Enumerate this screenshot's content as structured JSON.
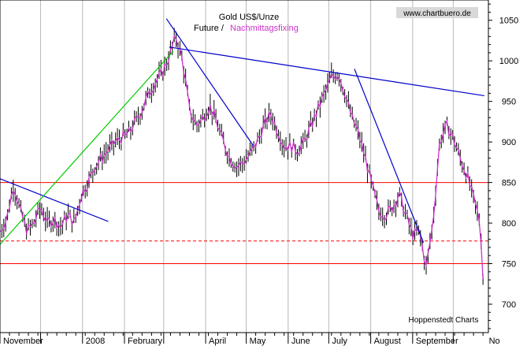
{
  "chart_data": {
    "type": "line",
    "title": "Gold US$/Unze",
    "subtitle_a": "Future /",
    "subtitle_b": "Nachmittagsfixing",
    "watermark": "www.chartbuero.de",
    "credit": "Hoppenstedt Charts",
    "ylim": [
      665,
      1075
    ],
    "yticks": [
      700,
      750,
      800,
      850,
      900,
      950,
      1000,
      1050
    ],
    "x_range_days": [
      0,
      361
    ],
    "months": [
      {
        "label": "November",
        "day": 0
      },
      {
        "label": "2008",
        "day": 61
      },
      {
        "label": "February",
        "day": 92
      },
      {
        "label": "April",
        "day": 152
      },
      {
        "label": "May",
        "day": 182
      },
      {
        "label": "June",
        "day": 213
      },
      {
        "label": "July",
        "day": 243
      },
      {
        "label": "August",
        "day": 274
      },
      {
        "label": "September",
        "day": 305
      },
      {
        "label": "No",
        "day": 359
      }
    ],
    "month_boundaries": [
      0,
      30,
      61,
      92,
      121,
      152,
      182,
      213,
      243,
      274,
      305,
      335,
      366
    ],
    "colors": {
      "future": "#000000",
      "fixing": "#cc33cc",
      "support": "#ff0000",
      "trend_down": "#0000cc",
      "trend_up": "#00cc00",
      "grid": "#b8b8b8"
    },
    "series": [
      {
        "name": "Nachmittagsfixing",
        "x": [
          0,
          5,
          10,
          15,
          20,
          25,
          30,
          35,
          40,
          45,
          50,
          55,
          60,
          65,
          70,
          75,
          80,
          85,
          90,
          95,
          100,
          105,
          110,
          115,
          120,
          125,
          130,
          135,
          140,
          145,
          150,
          155,
          160,
          165,
          170,
          175,
          180,
          185,
          190,
          195,
          200,
          205,
          210,
          215,
          220,
          225,
          230,
          235,
          240,
          245,
          250,
          255,
          260,
          265,
          270,
          275,
          280,
          285,
          290,
          295,
          300,
          305,
          310,
          315,
          320,
          325,
          330,
          335,
          340,
          345,
          350,
          355,
          358
        ],
        "values": [
          790,
          805,
          848,
          815,
          790,
          800,
          820,
          800,
          805,
          795,
          810,
          800,
          835,
          850,
          870,
          880,
          890,
          900,
          905,
          910,
          925,
          940,
          960,
          975,
          985,
          1005,
          1030,
          1000,
          940,
          920,
          930,
          945,
          925,
          900,
          880,
          870,
          875,
          885,
          900,
          920,
          935,
          915,
          895,
          895,
          890,
          900,
          920,
          940,
          960,
          980,
          985,
          960,
          930,
          910,
          880,
          845,
          815,
          810,
          820,
          835,
          810,
          785,
          790,
          745,
          800,
          900,
          920,
          905,
          880,
          860,
          830,
          800,
          700
        ]
      }
    ],
    "horizontal_lines": [
      {
        "y": 850,
        "style": "solid"
      },
      {
        "y": 778,
        "style": "dashed"
      },
      {
        "y": 750,
        "style": "solid"
      }
    ],
    "trendlines": [
      {
        "color": "trend_down",
        "from": [
          -5,
          858
        ],
        "to": [
          80,
          802
        ]
      },
      {
        "color": "trend_up",
        "from": [
          -2,
          770
        ],
        "to": [
          128,
          1012
        ]
      },
      {
        "color": "trend_down",
        "from": [
          123,
          1052
        ],
        "to": [
          187,
          896
        ]
      },
      {
        "color": "trend_down",
        "from": [
          125,
          1017
        ],
        "to": [
          358,
          957
        ]
      },
      {
        "color": "trend_down",
        "from": [
          262,
          990
        ],
        "to": [
          313,
          776
        ]
      }
    ]
  }
}
